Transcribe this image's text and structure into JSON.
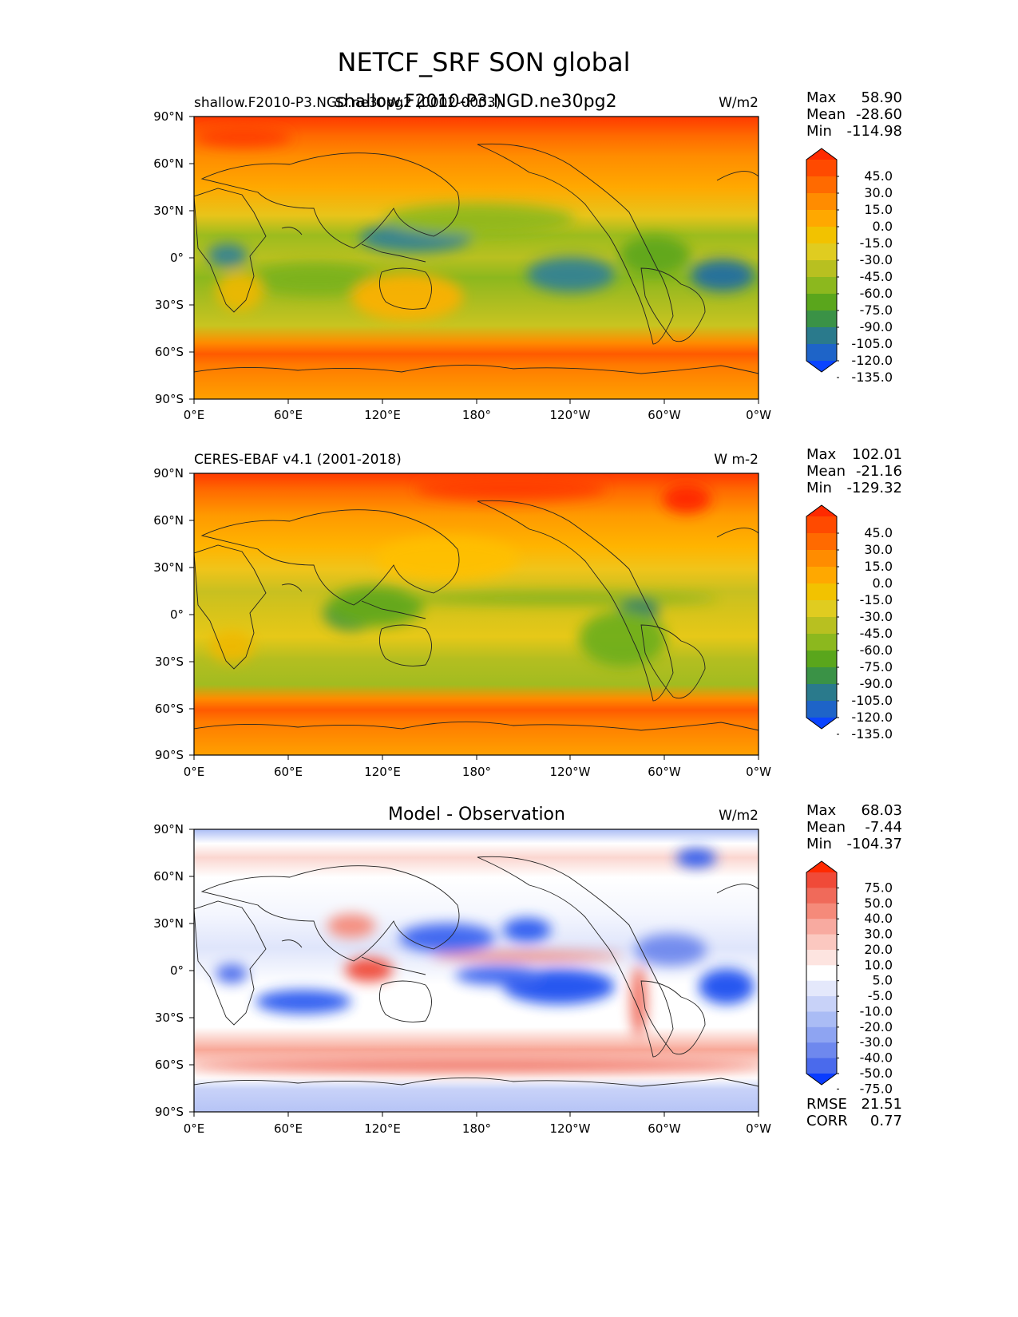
{
  "figure": {
    "title": "NETCF_SRF SON global",
    "subtitle": "shallow.F2010-P3.NGD.ne30pg2"
  },
  "axes": {
    "x_ticks": [
      "0°E",
      "60°E",
      "120°E",
      "180°",
      "120°W",
      "60°W",
      "0°W"
    ],
    "y_ticks": [
      "90°N",
      "60°N",
      "30°N",
      "0°",
      "30°S",
      "60°S",
      "90°S"
    ]
  },
  "panels": [
    {
      "left_title": "shallow.F2010-P3.NGD.ne30pg2 (0002-0003)",
      "center_title": "",
      "units": "W/m2",
      "stats": [
        {
          "label": "Max",
          "value": "58.90"
        },
        {
          "label": "Mean",
          "value": "-28.60"
        },
        {
          "label": "Min",
          "value": "-114.98"
        }
      ]
    },
    {
      "left_title": "CERES-EBAF v4.1 (2001-2018)",
      "center_title": "",
      "units": "W m-2",
      "stats": [
        {
          "label": "Max",
          "value": "102.01"
        },
        {
          "label": "Mean",
          "value": "-21.16"
        },
        {
          "label": "Min",
          "value": "-129.32"
        }
      ]
    },
    {
      "left_title": "",
      "center_title": "Model - Observation",
      "units": "W/m2",
      "stats": [
        {
          "label": "Max",
          "value": "68.03"
        },
        {
          "label": "Mean",
          "value": "-7.44"
        },
        {
          "label": "Min",
          "value": "-104.37"
        }
      ],
      "metrics": [
        {
          "label": "RMSE",
          "value": "21.51"
        },
        {
          "label": "CORR",
          "value": "0.77"
        }
      ]
    }
  ],
  "colorbars": {
    "abs": {
      "levels": [
        "45.0",
        "30.0",
        "15.0",
        "0.0",
        "-15.0",
        "-30.0",
        "-45.0",
        "-60.0",
        "-75.0",
        "-90.0",
        "-105.0",
        "-120.0",
        "-135.0"
      ],
      "colors": [
        "#ff2a00",
        "#ff4a00",
        "#ff6a00",
        "#ff8c00",
        "#ffa800",
        "#f2c200",
        "#e0cc20",
        "#b8c020",
        "#8cb81e",
        "#5aa61c",
        "#3a9246",
        "#2a7a8c",
        "#1e64c8",
        "#0a44ff"
      ]
    },
    "diff": {
      "levels": [
        "75.0",
        "50.0",
        "40.0",
        "30.0",
        "20.0",
        "10.0",
        "5.0",
        "-5.0",
        "-10.0",
        "-20.0",
        "-30.0",
        "-40.0",
        "-50.0",
        "-75.0"
      ],
      "colors": [
        "#ff2a00",
        "#f04a38",
        "#f06a5a",
        "#f58a7a",
        "#f8aaa0",
        "#fbc8c0",
        "#fde4e0",
        "#ffffff",
        "#e4e8fb",
        "#c8d2f8",
        "#aabcf5",
        "#8ea4f2",
        "#6e88ee",
        "#4a6aec",
        "#0a3cff"
      ]
    }
  },
  "chart_data": [
    {
      "type": "heatmap",
      "title": "shallow.F2010-P3.NGD.ne30pg2 (0002-0003)",
      "units": "W/m2",
      "x": [
        "0°E",
        "60°E",
        "120°E",
        "180°",
        "120°W",
        "60°W",
        "0°W"
      ],
      "y": [
        "90°N",
        "60°N",
        "30°N",
        "0°",
        "30°S",
        "60°S",
        "90°S"
      ],
      "lon_range": [
        0,
        360
      ],
      "lat_range": [
        -90,
        90
      ],
      "colorbar_levels": [
        -135,
        -120,
        -105,
        -90,
        -75,
        -60,
        -45,
        -30,
        -15,
        0,
        15,
        30,
        45
      ],
      "max": 58.9,
      "mean": -28.6,
      "min": -114.98
    },
    {
      "type": "heatmap",
      "title": "CERES-EBAF v4.1 (2001-2018)",
      "units": "W m-2",
      "x": [
        "0°E",
        "60°E",
        "120°E",
        "180°",
        "120°W",
        "60°W",
        "0°W"
      ],
      "y": [
        "90°N",
        "60°N",
        "30°N",
        "0°",
        "30°S",
        "60°S",
        "90°S"
      ],
      "lon_range": [
        0,
        360
      ],
      "lat_range": [
        -90,
        90
      ],
      "colorbar_levels": [
        -135,
        -120,
        -105,
        -90,
        -75,
        -60,
        -45,
        -30,
        -15,
        0,
        15,
        30,
        45
      ],
      "max": 102.01,
      "mean": -21.16,
      "min": -129.32
    },
    {
      "type": "heatmap",
      "title": "Model - Observation",
      "units": "W/m2",
      "x": [
        "0°E",
        "60°E",
        "120°E",
        "180°",
        "120°W",
        "60°W",
        "0°W"
      ],
      "y": [
        "90°N",
        "60°N",
        "30°N",
        "0°",
        "30°S",
        "60°S",
        "90°S"
      ],
      "lon_range": [
        0,
        360
      ],
      "lat_range": [
        -90,
        90
      ],
      "colorbar_levels": [
        -75,
        -50,
        -40,
        -30,
        -20,
        -10,
        -5,
        5,
        10,
        20,
        30,
        40,
        50,
        75
      ],
      "max": 68.03,
      "mean": -7.44,
      "min": -104.37,
      "rmse": 21.51,
      "corr": 0.77
    }
  ]
}
